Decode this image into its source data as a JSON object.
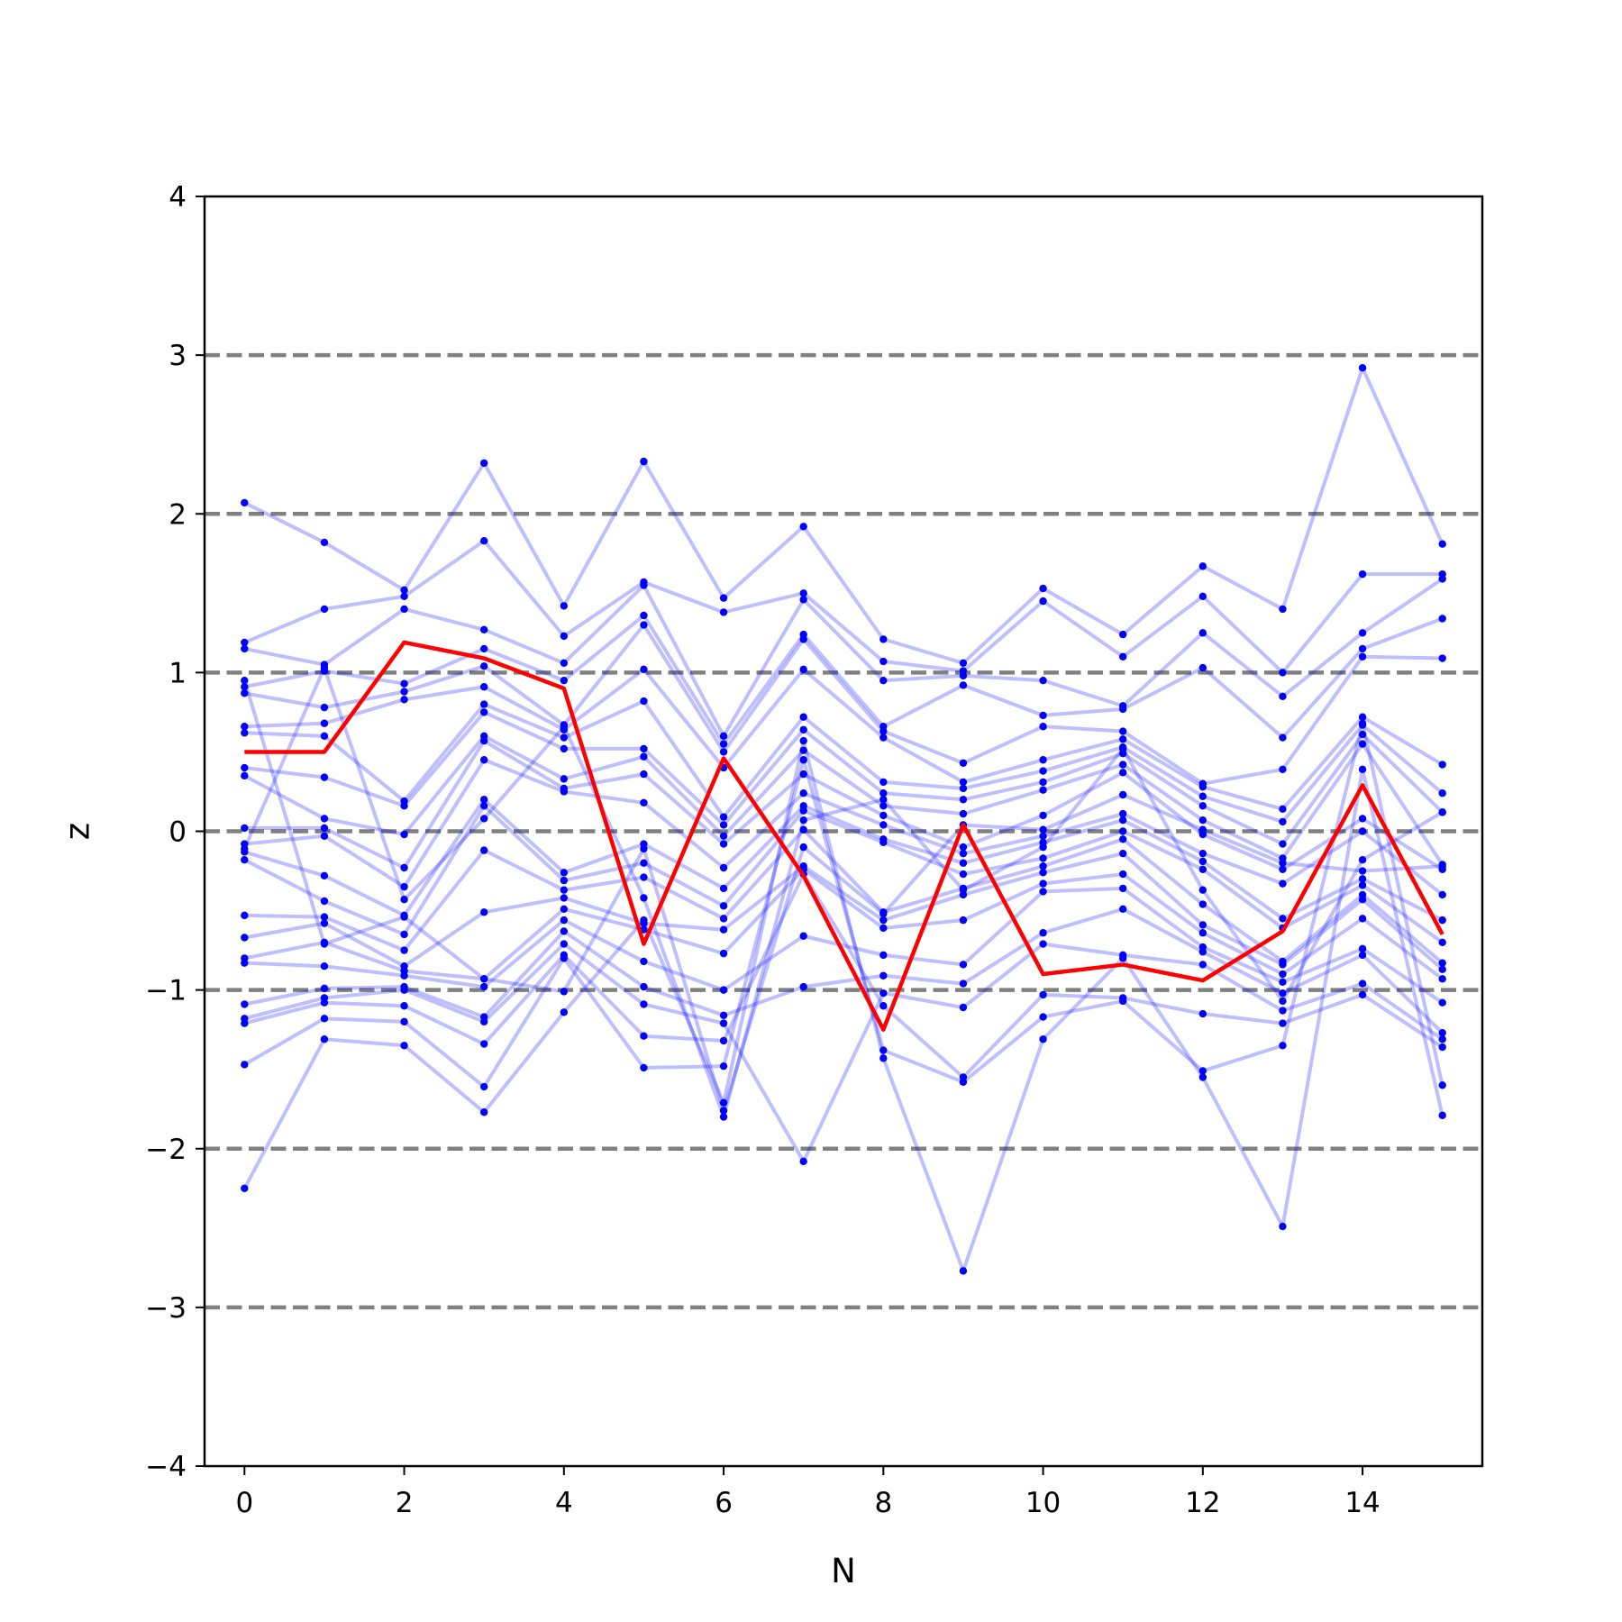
{
  "chart_data": {
    "type": "line",
    "title": "",
    "xlabel": "N",
    "ylabel": "z",
    "xlim": [
      -0.5,
      15.5
    ],
    "ylim": [
      -4,
      4
    ],
    "xticks": [
      0,
      2,
      4,
      6,
      8,
      10,
      12,
      14
    ],
    "xtick_labels": [
      "0",
      "2",
      "4",
      "6",
      "8",
      "10",
      "12",
      "14"
    ],
    "yticks": [
      -4,
      -3,
      -2,
      -1,
      0,
      1,
      2,
      3,
      4
    ],
    "ytick_labels": [
      "−4",
      "−3",
      "−2",
      "−1",
      "0",
      "1",
      "2",
      "3",
      "4"
    ],
    "reference_lines": [
      -3,
      -2,
      -1,
      0,
      1,
      2,
      3
    ],
    "grid": false,
    "legend": "none",
    "colors": {
      "samples": "#0000ff",
      "highlight": "#ff0000",
      "reference": "#808080",
      "axes": "#000000"
    },
    "x": [
      0,
      1,
      2,
      3,
      4,
      5,
      6,
      7,
      8,
      9,
      10,
      11,
      12,
      13,
      14,
      15
    ],
    "highlight_series": {
      "values": [
        0.5,
        0.5,
        1.19,
        1.09,
        0.9,
        -0.71,
        0.46,
        -0.28,
        -1.25,
        0.04,
        -0.9,
        -0.84,
        -0.94,
        -0.63,
        0.29,
        -0.65
      ]
    },
    "sample_series": [
      [
        2.07,
        1.82,
        1.52,
        2.32,
        1.42,
        2.33,
        1.47,
        1.92,
        1.21,
        1.06,
        1.53,
        1.24,
        1.67,
        1.4,
        2.92,
        1.81
      ],
      [
        1.19,
        1.4,
        1.48,
        1.83,
        1.23,
        1.57,
        1.38,
        1.5,
        1.07,
        1.01,
        1.45,
        1.1,
        1.48,
        1.0,
        1.62,
        1.62
      ],
      [
        1.15,
        1.05,
        1.4,
        1.27,
        1.06,
        1.55,
        0.6,
        1.46,
        0.95,
        0.98,
        0.95,
        0.79,
        1.25,
        0.85,
        1.25,
        1.59
      ],
      [
        0.91,
        1.01,
        0.93,
        1.15,
        0.95,
        1.36,
        0.55,
        1.24,
        0.66,
        0.92,
        0.73,
        0.77,
        1.03,
        0.59,
        1.15,
        1.34
      ],
      [
        0.87,
        0.78,
        0.88,
        1.04,
        0.67,
        1.3,
        0.5,
        1.21,
        0.63,
        0.43,
        0.66,
        0.63,
        0.3,
        0.39,
        1.1,
        1.09
      ],
      [
        0.66,
        0.68,
        0.83,
        0.91,
        0.64,
        1.02,
        0.4,
        1.02,
        0.59,
        0.31,
        0.45,
        0.58,
        0.28,
        0.14,
        0.72,
        0.42
      ],
      [
        0.62,
        0.6,
        0.19,
        0.8,
        0.59,
        0.82,
        0.09,
        0.72,
        0.31,
        0.27,
        0.38,
        0.53,
        0.22,
        0.06,
        0.67,
        0.24
      ],
      [
        0.4,
        0.34,
        0.16,
        0.75,
        0.52,
        0.52,
        0.04,
        0.64,
        0.24,
        0.2,
        0.31,
        0.49,
        0.16,
        -0.08,
        0.61,
        0.12
      ],
      [
        0.35,
        0.08,
        -0.02,
        0.6,
        0.33,
        0.47,
        -0.03,
        0.51,
        0.16,
        0.11,
        0.26,
        0.42,
        0.07,
        -0.17,
        0.55,
        -0.21
      ],
      [
        0.02,
        0.02,
        -0.23,
        0.57,
        0.27,
        0.36,
        -0.08,
        0.36,
        0.1,
        -0.1,
        0.1,
        0.37,
        -0.02,
        -0.24,
        0.08,
        -0.24
      ],
      [
        -0.08,
        -0.03,
        -0.35,
        0.45,
        0.25,
        0.18,
        -0.23,
        0.24,
        0.04,
        -0.14,
        -0.03,
        0.11,
        -0.14,
        -0.33,
        0.0,
        -0.4
      ],
      [
        -0.13,
        -0.28,
        -0.53,
        0.2,
        -0.26,
        -0.08,
        -0.36,
        0.16,
        -0.05,
        -0.2,
        -0.07,
        0.07,
        -0.19,
        -0.55,
        -0.3,
        -0.56
      ],
      [
        -0.18,
        -0.44,
        -0.65,
        0.16,
        -0.31,
        -0.2,
        -0.47,
        0.13,
        -0.07,
        -0.27,
        -0.17,
        0.0,
        -0.24,
        -0.61,
        -0.34,
        -0.7
      ],
      [
        -0.53,
        -0.54,
        -0.75,
        -0.12,
        -0.37,
        -0.29,
        -0.55,
        0.01,
        -0.51,
        -0.36,
        -0.22,
        -0.05,
        -0.46,
        -0.82,
        -0.4,
        -0.83
      ],
      [
        -0.67,
        -0.58,
        -0.85,
        -0.51,
        -0.42,
        -0.58,
        -0.62,
        -0.22,
        -0.56,
        -0.4,
        -0.26,
        -0.14,
        -0.59,
        -0.84,
        -0.43,
        -0.87
      ],
      [
        -0.8,
        -0.7,
        -0.88,
        -0.93,
        -0.49,
        -0.62,
        -0.77,
        -0.24,
        -0.61,
        -0.56,
        -0.33,
        -0.27,
        -0.64,
        -0.9,
        -0.55,
        -0.93
      ],
      [
        -0.83,
        -0.85,
        -0.91,
        -0.98,
        -0.56,
        -0.82,
        -1.0,
        -0.66,
        -0.78,
        -0.84,
        -0.38,
        -0.36,
        -0.73,
        -0.95,
        -0.74,
        -1.08
      ],
      [
        -1.09,
        -0.99,
        -0.98,
        -1.17,
        -0.63,
        -0.98,
        -1.16,
        -0.98,
        -0.91,
        -0.96,
        -0.64,
        -0.49,
        -0.76,
        -1.02,
        -0.78,
        -1.27
      ],
      [
        -1.18,
        -1.05,
        -1.0,
        -1.2,
        -0.71,
        -1.09,
        -1.21,
        -2.08,
        -1.02,
        -1.11,
        -0.71,
        -0.78,
        -0.84,
        -1.13,
        -0.96,
        -1.31
      ],
      [
        -1.21,
        -1.08,
        -1.1,
        -1.34,
        -0.78,
        -1.29,
        -1.32,
        -0.27,
        -1.1,
        -1.55,
        -1.03,
        -1.05,
        -1.15,
        -1.21,
        -1.03,
        -1.36
      ],
      [
        -1.47,
        -1.18,
        -1.2,
        -1.61,
        -0.8,
        -1.49,
        -1.48,
        0.45,
        -1.38,
        -1.58,
        -1.17,
        -1.07,
        -1.51,
        -1.35,
        0.68,
        -1.6
      ],
      [
        -2.25,
        -1.31,
        -1.35,
        -1.77,
        -1.14,
        -0.56,
        -1.71,
        0.57,
        -1.43,
        -2.77,
        -1.31,
        -0.8,
        -1.55,
        -2.49,
        0.39,
        -1.79
      ],
      [
        0.95,
        -0.71,
        -0.54,
        -0.93,
        -1.01,
        -0.11,
        -1.76,
        -0.1,
        -0.52,
        0.04,
        0.01,
        0.23,
        0.01,
        -0.2,
        -0.25,
        -0.22
      ],
      [
        -0.11,
        1.03,
        -0.43,
        0.08,
        0.66,
        -0.42,
        -1.8,
        0.07,
        0.2,
        -0.37,
        -0.1,
        0.52,
        -0.37,
        -1.07,
        -0.18,
        0.12
      ]
    ]
  }
}
